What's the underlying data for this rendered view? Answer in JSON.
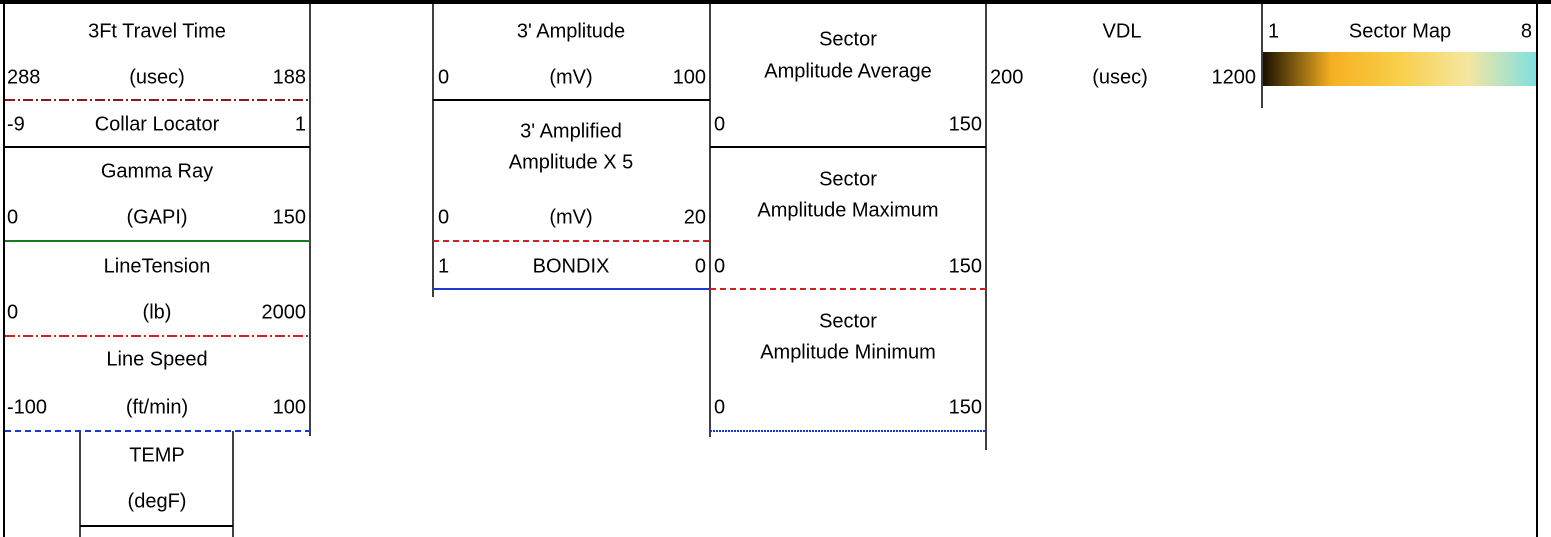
{
  "tracks": [
    {
      "curves": [
        {
          "title": "3Ft Travel Time",
          "left": 288,
          "unit": "(usec)",
          "right": 188,
          "color": "#8b1a1a",
          "style": "dash-dot"
        },
        {
          "title": "Collar Locator",
          "left": -9,
          "right": 1,
          "color": "#000000",
          "style": "solid"
        },
        {
          "title": "Gamma Ray",
          "left": 0,
          "unit": "(GAPI)",
          "right": 150,
          "color": "#1a7a1a",
          "style": "solid"
        },
        {
          "title": "LineTension",
          "left": 0,
          "unit": "(lb)",
          "right": 2000,
          "color": "#d42020",
          "style": "dash-dot"
        },
        {
          "title": "Line Speed",
          "left": -100,
          "unit": "(ft/min)",
          "right": 100,
          "color": "#1a3ad4",
          "style": "dashed"
        },
        {
          "title": "TEMP",
          "unit": "(degF)",
          "color": "#000000",
          "style": "solid"
        }
      ]
    },
    {
      "curves": [
        {
          "title": "3' Amplitude",
          "left": 0,
          "unit": "(mV)",
          "right": 100,
          "color": "#000000",
          "style": "solid"
        },
        {
          "title": [
            "3' Amplified",
            "Amplitude X 5"
          ],
          "left": 0,
          "unit": "(mV)",
          "right": 20,
          "color": "#d42020",
          "style": "dashed"
        },
        {
          "title": "BONDIX",
          "left": 1,
          "right": 0,
          "color": "#1a3ad4",
          "style": "solid"
        }
      ]
    },
    {
      "curves": [
        {
          "title": [
            "Sector",
            "Amplitude Average"
          ],
          "left": 0,
          "right": 150,
          "color": "#000000",
          "style": "solid"
        },
        {
          "title": [
            "Sector",
            "Amplitude Maximum"
          ],
          "left": 0,
          "right": 150,
          "color": "#d42020",
          "style": "dashed"
        },
        {
          "title": [
            "Sector",
            "Amplitude Minimum"
          ],
          "left": 0,
          "right": 150,
          "color": "#1a3ad4",
          "style": "dotted"
        }
      ]
    },
    {
      "curves": [
        {
          "title": "VDL",
          "left": 200,
          "unit": "(usec)",
          "right": 1200
        }
      ]
    },
    {
      "curves": [
        {
          "title": "Sector Map",
          "left": 1,
          "right": 8,
          "colors": [
            "#1a1000",
            "#f5b021",
            "#f8cf4a",
            "#f5e6a0",
            "#7fe0e0"
          ]
        }
      ]
    }
  ]
}
